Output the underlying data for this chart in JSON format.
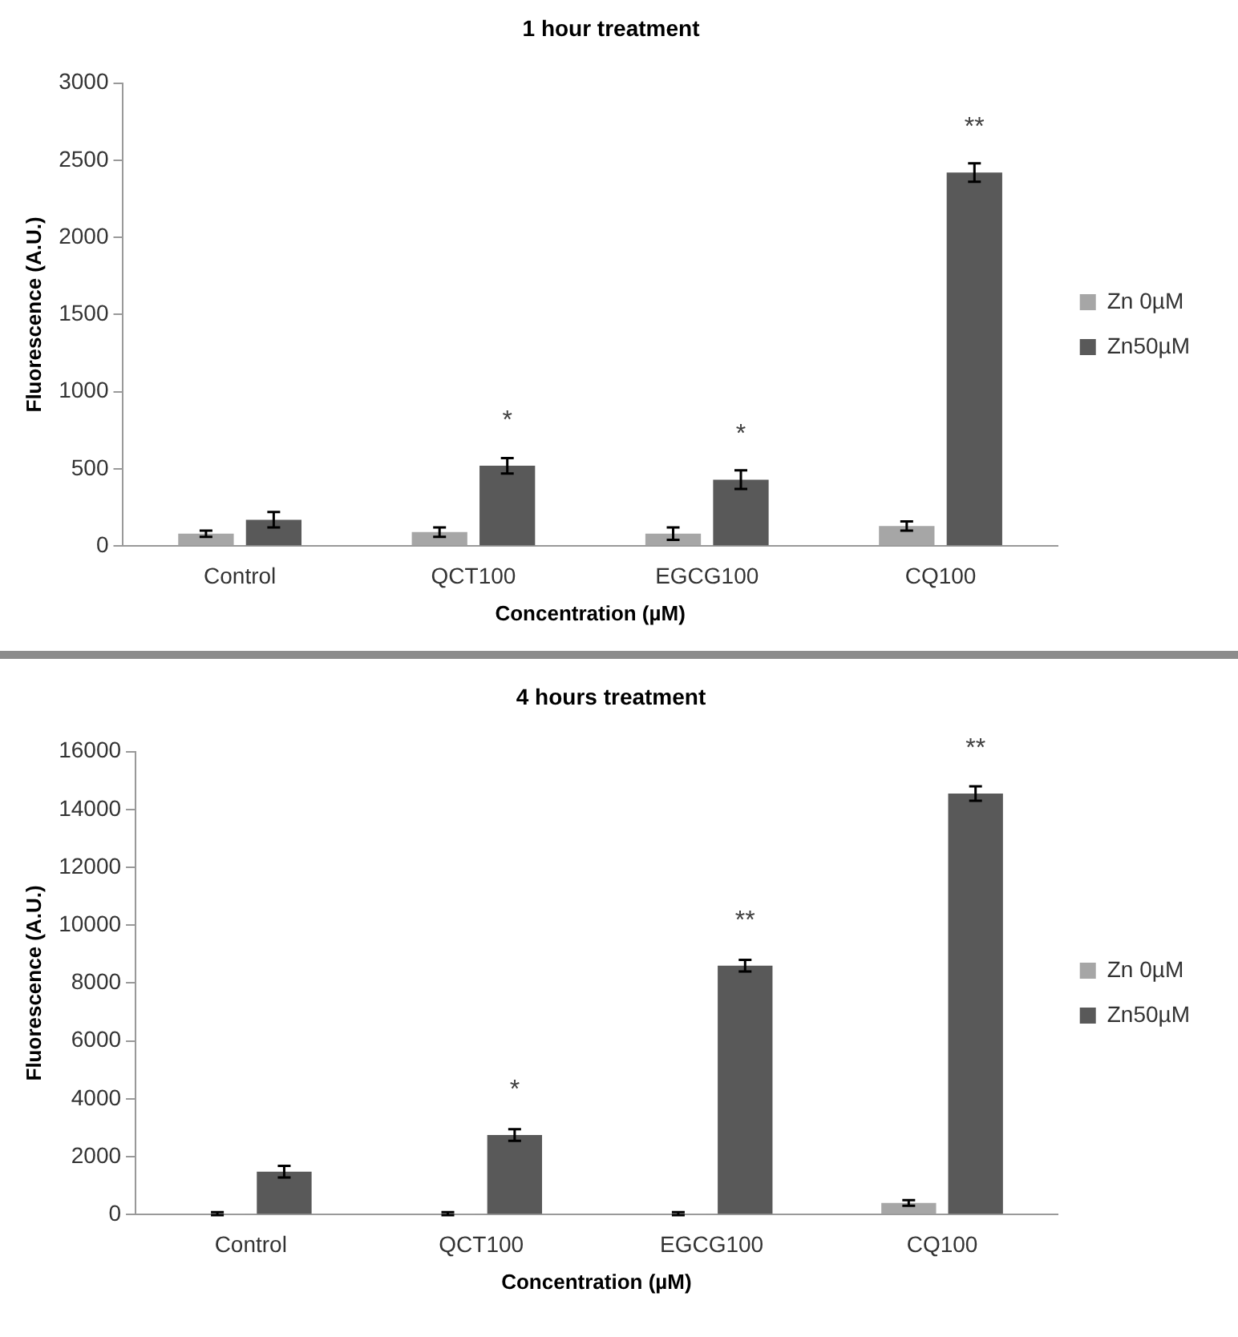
{
  "chart_data": [
    {
      "type": "bar",
      "title": "1 hour treatment",
      "xlabel": "Concentration (µM)",
      "ylabel": "Fluorescence (A.U.)",
      "categories": [
        "Control",
        "QCT100",
        "EGCG100",
        "CQ100"
      ],
      "legend": "right",
      "ylim": [
        0,
        3000
      ],
      "yticks": [
        0,
        500,
        1000,
        1500,
        2000,
        2500,
        3000
      ],
      "series": [
        {
          "name": "Zn 0µM",
          "color": "#a6a6a6",
          "values": [
            80,
            90,
            80,
            130
          ],
          "errors": [
            20,
            30,
            40,
            30
          ]
        },
        {
          "name": "Zn50µM",
          "color": "#595959",
          "values": [
            170,
            520,
            430,
            2420
          ],
          "errors": [
            50,
            50,
            60,
            60
          ]
        }
      ],
      "annotations": [
        {
          "text": "*",
          "x": "QCT100",
          "y": 520
        },
        {
          "text": "*",
          "x": "EGCG100",
          "y": 430
        },
        {
          "text": "**",
          "x": "CQ100",
          "y": 2420
        }
      ]
    },
    {
      "type": "bar",
      "title": "4 hours treatment",
      "xlabel": "Concentration (µM)",
      "ylabel": "Fluorescence (A.U.)",
      "categories": [
        "Control",
        "QCT100",
        "EGCG100",
        "CQ100"
      ],
      "legend": "right",
      "ylim": [
        0,
        16000
      ],
      "yticks": [
        0,
        2000,
        4000,
        6000,
        8000,
        10000,
        12000,
        14000,
        16000
      ],
      "series": [
        {
          "name": "Zn 0µM",
          "color": "#a6a6a6",
          "values": [
            30,
            30,
            30,
            400
          ],
          "errors": [
            50,
            50,
            50,
            100
          ]
        },
        {
          "name": "Zn50µM",
          "color": "#595959",
          "values": [
            1480,
            2750,
            8600,
            14550
          ],
          "errors": [
            200,
            200,
            200,
            250
          ]
        }
      ],
      "annotations": [
        {
          "text": "*",
          "x": "QCT100",
          "y": 2750
        },
        {
          "text": "**",
          "x": "EGCG100",
          "y": 8600
        },
        {
          "text": "**",
          "x": "CQ100",
          "y": 14550
        }
      ]
    }
  ]
}
